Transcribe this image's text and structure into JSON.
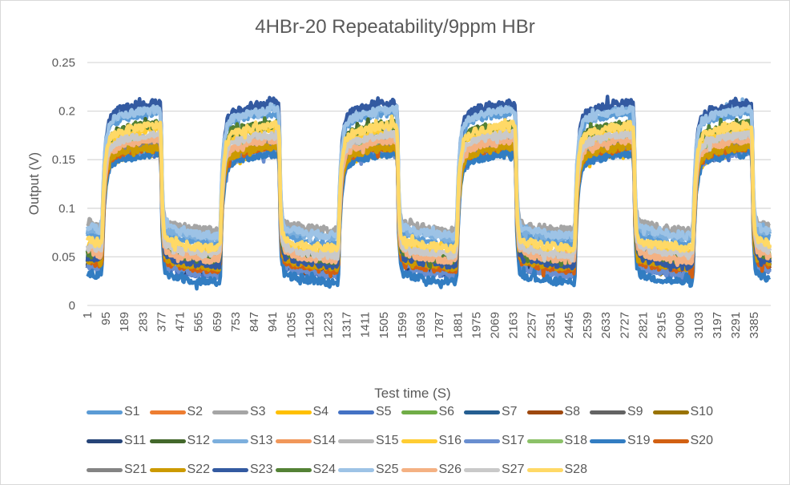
{
  "chart_data": {
    "type": "line",
    "title": "4HBr-20 Repeatability/9ppm HBr",
    "xlabel": "Test time (S)",
    "ylabel": "Output (V)",
    "ylim": [
      0,
      0.25
    ],
    "yticks": [
      "0",
      "0.05",
      "0.1",
      "0.15",
      "0.2",
      "0.25"
    ],
    "ytick_values": [
      0,
      0.05,
      0.1,
      0.15,
      0.2,
      0.25
    ],
    "xlim": [
      1,
      3470
    ],
    "xticks": [
      "1",
      "95",
      "189",
      "283",
      "377",
      "471",
      "565",
      "659",
      "753",
      "847",
      "941",
      "1035",
      "1129",
      "1223",
      "1317",
      "1411",
      "1505",
      "1599",
      "1693",
      "1787",
      "1881",
      "1975",
      "2069",
      "2163",
      "2257",
      "2351",
      "2445",
      "2539",
      "2633",
      "2727",
      "2821",
      "2915",
      "3009",
      "3103",
      "3197",
      "3291",
      "3385"
    ],
    "grid": "horizontal",
    "legend_position": "bottom",
    "exposure_cycles": {
      "gas_on_start": [
        75,
        675,
        1275,
        1875,
        2475,
        3075
      ],
      "gas_on_end": [
        375,
        975,
        1575,
        2175,
        2775,
        3375
      ]
    },
    "series": [
      {
        "name": "S1",
        "color": "#5B9BD5",
        "baseline": 0.062,
        "plateau": 0.2
      },
      {
        "name": "S2",
        "color": "#ED7D31",
        "baseline": 0.04,
        "plateau": 0.165
      },
      {
        "name": "S3",
        "color": "#A5A5A5",
        "baseline": 0.075,
        "plateau": 0.17
      },
      {
        "name": "S4",
        "color": "#FFC000",
        "baseline": 0.045,
        "plateau": 0.16
      },
      {
        "name": "S5",
        "color": "#4472C4",
        "baseline": 0.03,
        "plateau": 0.162
      },
      {
        "name": "S6",
        "color": "#70AD47",
        "baseline": 0.045,
        "plateau": 0.185
      },
      {
        "name": "S7",
        "color": "#255E91",
        "baseline": 0.035,
        "plateau": 0.165
      },
      {
        "name": "S8",
        "color": "#9E480E",
        "baseline": 0.035,
        "plateau": 0.165
      },
      {
        "name": "S9",
        "color": "#636363",
        "baseline": 0.04,
        "plateau": 0.168
      },
      {
        "name": "S10",
        "color": "#997300",
        "baseline": 0.035,
        "plateau": 0.163
      },
      {
        "name": "S11",
        "color": "#264478",
        "baseline": 0.033,
        "plateau": 0.165
      },
      {
        "name": "S12",
        "color": "#43682B",
        "baseline": 0.042,
        "plateau": 0.188
      },
      {
        "name": "S13",
        "color": "#7CAFDD",
        "baseline": 0.068,
        "plateau": 0.205
      },
      {
        "name": "S14",
        "color": "#F1975A",
        "baseline": 0.04,
        "plateau": 0.168
      },
      {
        "name": "S15",
        "color": "#B7B7B7",
        "baseline": 0.045,
        "plateau": 0.175
      },
      {
        "name": "S16",
        "color": "#FFCD33",
        "baseline": 0.052,
        "plateau": 0.183
      },
      {
        "name": "S17",
        "color": "#698ED0",
        "baseline": 0.03,
        "plateau": 0.16
      },
      {
        "name": "S18",
        "color": "#8CC168",
        "baseline": 0.04,
        "plateau": 0.17
      },
      {
        "name": "S19",
        "color": "#327DC2",
        "baseline": 0.022,
        "plateau": 0.158
      },
      {
        "name": "S20",
        "color": "#D26012",
        "baseline": 0.035,
        "plateau": 0.165
      },
      {
        "name": "S21",
        "color": "#848484",
        "baseline": 0.045,
        "plateau": 0.168
      },
      {
        "name": "S22",
        "color": "#CC9A00",
        "baseline": 0.038,
        "plateau": 0.165
      },
      {
        "name": "S23",
        "color": "#335AA1",
        "baseline": 0.04,
        "plateau": 0.21
      },
      {
        "name": "S24",
        "color": "#548235",
        "baseline": 0.045,
        "plateau": 0.188
      },
      {
        "name": "S25",
        "color": "#9DC3E6",
        "baseline": 0.07,
        "plateau": 0.203
      },
      {
        "name": "S26",
        "color": "#F4B183",
        "baseline": 0.045,
        "plateau": 0.172
      },
      {
        "name": "S27",
        "color": "#C9C9C9",
        "baseline": 0.05,
        "plateau": 0.178
      },
      {
        "name": "S28",
        "color": "#FFD966",
        "baseline": 0.057,
        "plateau": 0.187
      }
    ]
  }
}
